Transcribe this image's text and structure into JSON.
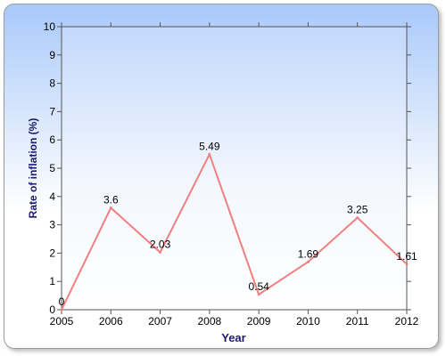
{
  "chart_data": {
    "type": "line",
    "title": "",
    "xlabel": "Year",
    "ylabel": "Rate of inflation (%)",
    "x": [
      2005,
      2006,
      2007,
      2008,
      2009,
      2010,
      2011,
      2012
    ],
    "series": [
      {
        "values": [
          0,
          3.6,
          2.03,
          5.49,
          0.54,
          1.69,
          3.25,
          1.61
        ],
        "data_labels": [
          "0",
          "3.6",
          "2.03",
          "5.49",
          "0.54",
          "1.69",
          "3.25",
          "1.61"
        ]
      }
    ],
    "xlim": [
      2005,
      2012
    ],
    "ylim": [
      0,
      10
    ],
    "y_ticks": [
      "0",
      "1",
      "2",
      "3",
      "4",
      "5",
      "6",
      "7",
      "8",
      "9",
      "10"
    ],
    "x_ticks": [
      "2005",
      "2006",
      "2007",
      "2008",
      "2009",
      "2010",
      "2011",
      "2012"
    ],
    "grid": false,
    "colors": {
      "line": "#f08080",
      "axis_title": "#1a1a6e",
      "tick_text": "#000000"
    }
  }
}
